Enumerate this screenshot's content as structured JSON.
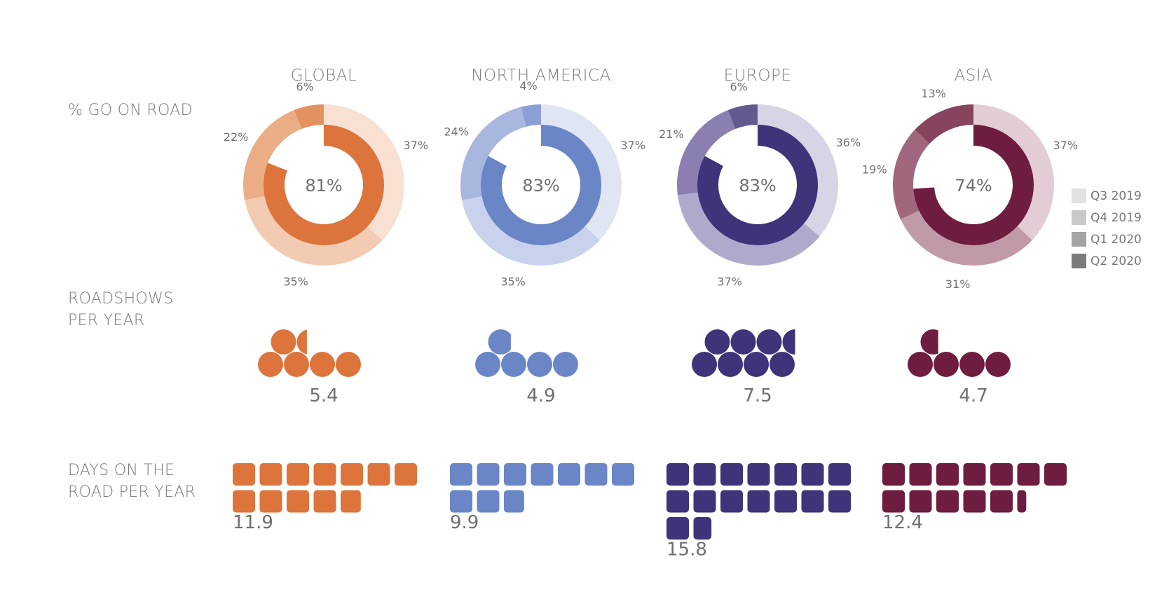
{
  "row_labels": {
    "on_road": "% GO ON ROAD",
    "roadshows_line1": "ROADSHOWS",
    "roadshows_line2": "PER YEAR",
    "days_line1": "DAYS ON THE",
    "days_line2": "ROAD PER YEAR"
  },
  "legend": [
    {
      "label": "Q3 2019",
      "color": "#e1e1e1"
    },
    {
      "label": "Q4 2019",
      "color": "#c8c8c8"
    },
    {
      "label": "Q1 2020",
      "color": "#a4a4a4"
    },
    {
      "label": "Q2 2020",
      "color": "#7b7b7b"
    }
  ],
  "chart_data": {
    "type": "donut+pictogram",
    "regions": [
      {
        "name": "GLOBAL",
        "center_label": "81%",
        "inner_value": 81,
        "quarters": [
          "Q3 2019",
          "Q4 2019",
          "Q1 2020",
          "Q2 2020"
        ],
        "quarter_pct": [
          37,
          35,
          22,
          6
        ],
        "quarter_labels": [
          "37%",
          "35%",
          "22%",
          "6%"
        ],
        "roadshows_per_year": 5.4,
        "roadshows_label": "5.4",
        "days_on_road": 11.9,
        "days_label": "11.9",
        "colors": {
          "main": "#dd743c",
          "quarters": [
            "#f8e1d3",
            "#f3cbb3",
            "#eaad85",
            "#e3925f"
          ]
        }
      },
      {
        "name": "NORTH AMERICA",
        "center_label": "83%",
        "inner_value": 83,
        "quarters": [
          "Q3 2019",
          "Q4 2019",
          "Q1 2020",
          "Q2 2020"
        ],
        "quarter_pct": [
          37,
          35,
          24,
          4
        ],
        "quarter_labels": [
          "37%",
          "35%",
          "24%",
          "4%"
        ],
        "roadshows_per_year": 4.9,
        "roadshows_label": "4.9",
        "days_on_road": 9.9,
        "days_label": "9.9",
        "colors": {
          "main": "#6a86c7",
          "quarters": [
            "#e0e5f4",
            "#c9d2ec",
            "#a9b6de",
            "#8a9fd3"
          ]
        }
      },
      {
        "name": "EUROPE",
        "center_label": "83%",
        "inner_value": 83,
        "quarters": [
          "Q3 2019",
          "Q4 2019",
          "Q1 2020",
          "Q2 2020"
        ],
        "quarter_pct": [
          36,
          37,
          21,
          6
        ],
        "quarter_labels": [
          "36%",
          "37%",
          "21%",
          "6%"
        ],
        "roadshows_per_year": 7.5,
        "roadshows_label": "7.5",
        "days_on_road": 15.8,
        "days_label": "15.8",
        "colors": {
          "main": "#3f3379",
          "quarters": [
            "#d8d4e6",
            "#b1a9cc",
            "#8a7fb0",
            "#645890"
          ]
        }
      },
      {
        "name": "ASIA",
        "center_label": "74%",
        "inner_value": 74,
        "quarters": [
          "Q3 2019",
          "Q4 2019",
          "Q1 2020",
          "Q2 2020"
        ],
        "quarter_pct": [
          37,
          31,
          19,
          13
        ],
        "quarter_labels": [
          "37%",
          "31%",
          "19%",
          "13%"
        ],
        "roadshows_per_year": 4.7,
        "roadshows_label": "4.7",
        "days_on_road": 12.4,
        "days_label": "12.4",
        "colors": {
          "main": "#6f1c41",
          "quarters": [
            "#e2ccd5",
            "#c19aa9",
            "#a0677e",
            "#86445f"
          ]
        }
      }
    ]
  }
}
